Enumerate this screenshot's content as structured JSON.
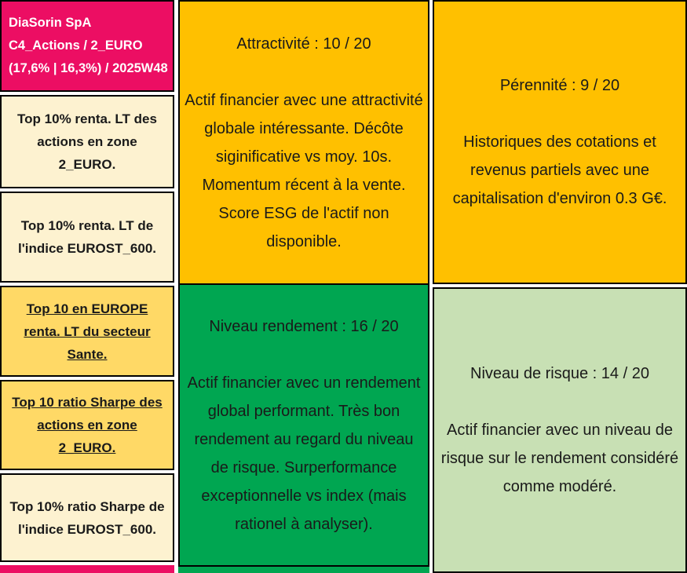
{
  "colors": {
    "pink": "#EC0E63",
    "cream": "#FDF2D0",
    "gold": "#FFD966",
    "orange": "#FFC000",
    "green": "#00A651",
    "light_green": "#C8E0B4",
    "border": "#000000",
    "header_text": "#FFFFFF"
  },
  "header": {
    "lines": [
      "DiaSorin SpA",
      "C4_Actions / 2_EURO",
      "(17,6% | 16,3%) / 2025W48"
    ]
  },
  "rankings": {
    "cells": [
      {
        "text": "Top 10% renta. LT des actions en zone 2_EURO."
      },
      {
        "text": "Top 10% renta. LT de l'indice EUROST_600."
      },
      {
        "text": "Top 10 en EUROPE renta. LT du secteur Sante."
      },
      {
        "text": "Top 10 ratio Sharpe des actions en zone 2_EURO."
      },
      {
        "text": "Top 10% ratio Sharpe de l'indice EUROST_600."
      }
    ]
  },
  "scores": {
    "attractivite": {
      "title": "Attractivité : 10 / 20",
      "body": "Actif financier avec une attractivité globale intéressante. Décôte siginificative vs moy. 10s. Momentum récent à la vente. Score ESG de l'actif non disponible."
    },
    "perennite": {
      "title": "Pérennité : 9 / 20",
      "body": "Historiques des cotations et revenus partiels avec une capitalisation d'environ 0.3 G€."
    },
    "rendement": {
      "title": "Niveau rendement : 16 / 20",
      "body": "Actif financier avec un rendement global performant. Très bon rendement au regard du niveau de risque. Surperformance exceptionnelle vs index (mais rationel à analyser)."
    },
    "risque": {
      "title": "Niveau de risque : 14 / 20",
      "body": "Actif financier avec un niveau de risque sur le rendement considéré comme modéré."
    }
  }
}
